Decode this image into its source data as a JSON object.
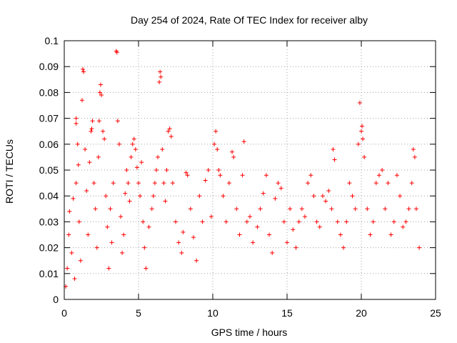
{
  "chart_data": {
    "type": "scatter",
    "title": "Day 254 of 2024, Rate Of TEC Index for receiver alby",
    "xlabel": "GPS time / hours",
    "ylabel": "ROTI / TECUs",
    "xlim": [
      0,
      25
    ],
    "ylim": [
      0,
      0.1
    ],
    "x_ticks": [
      0,
      5,
      10,
      15,
      20,
      25
    ],
    "x_tick_labels": [
      "0",
      "5",
      "10",
      "15",
      "20",
      "25"
    ],
    "y_ticks": [
      0,
      0.01,
      0.02,
      0.03,
      0.04,
      0.05,
      0.06,
      0.07,
      0.08,
      0.09,
      0.1
    ],
    "y_tick_labels": [
      "0",
      "0.01",
      "0.02",
      "0.03",
      "0.04",
      "0.05",
      "0.06",
      "0.07",
      "0.08",
      "0.09",
      "0.1"
    ],
    "grid": true,
    "marker": "plus",
    "series": [
      {
        "name": "ROTI",
        "color": "#ff0000",
        "points": [
          [
            0.1,
            0.005
          ],
          [
            0.2,
            0.012
          ],
          [
            0.3,
            0.025
          ],
          [
            0.35,
            0.034
          ],
          [
            0.5,
            0.018
          ],
          [
            0.6,
            0.039
          ],
          [
            0.7,
            0.008
          ],
          [
            0.8,
            0.045
          ],
          [
            0.8,
            0.07
          ],
          [
            0.8,
            0.068
          ],
          [
            0.9,
            0.06
          ],
          [
            0.95,
            0.052
          ],
          [
            1.0,
            0.03
          ],
          [
            1.1,
            0.015
          ],
          [
            1.2,
            0.077
          ],
          [
            1.25,
            0.089
          ],
          [
            1.3,
            0.088
          ],
          [
            1.4,
            0.058
          ],
          [
            1.5,
            0.042
          ],
          [
            1.6,
            0.025
          ],
          [
            1.7,
            0.053
          ],
          [
            1.8,
            0.065
          ],
          [
            1.85,
            0.066
          ],
          [
            1.9,
            0.069
          ],
          [
            2.0,
            0.045
          ],
          [
            2.1,
            0.035
          ],
          [
            2.2,
            0.02
          ],
          [
            2.3,
            0.055
          ],
          [
            2.35,
            0.069
          ],
          [
            2.4,
            0.08
          ],
          [
            2.45,
            0.083
          ],
          [
            2.5,
            0.079
          ],
          [
            2.6,
            0.065
          ],
          [
            2.7,
            0.062
          ],
          [
            2.8,
            0.04
          ],
          [
            2.9,
            0.028
          ],
          [
            3.0,
            0.012
          ],
          [
            3.1,
            0.035
          ],
          [
            3.2,
            0.022
          ],
          [
            3.3,
            0.045
          ],
          [
            3.5,
            0.096
          ],
          [
            3.55,
            0.0955
          ],
          [
            3.6,
            0.069
          ],
          [
            3.7,
            0.06
          ],
          [
            3.8,
            0.032
          ],
          [
            3.9,
            0.018
          ],
          [
            4.0,
            0.025
          ],
          [
            4.1,
            0.041
          ],
          [
            4.2,
            0.05
          ],
          [
            4.3,
            0.045
          ],
          [
            4.4,
            0.038
          ],
          [
            4.5,
            0.055
          ],
          [
            4.6,
            0.06
          ],
          [
            4.7,
            0.062
          ],
          [
            4.8,
            0.058
          ],
          [
            4.9,
            0.051
          ],
          [
            5.0,
            0.045
          ],
          [
            5.1,
            0.04
          ],
          [
            5.2,
            0.053
          ],
          [
            5.3,
            0.03
          ],
          [
            5.4,
            0.02
          ],
          [
            5.5,
            0.012
          ],
          [
            5.7,
            0.028
          ],
          [
            5.9,
            0.035
          ],
          [
            6.0,
            0.04
          ],
          [
            6.1,
            0.045
          ],
          [
            6.2,
            0.05
          ],
          [
            6.3,
            0.055
          ],
          [
            6.4,
            0.084
          ],
          [
            6.45,
            0.088
          ],
          [
            6.5,
            0.086
          ],
          [
            6.6,
            0.058
          ],
          [
            6.7,
            0.045
          ],
          [
            6.8,
            0.038
          ],
          [
            6.9,
            0.05
          ],
          [
            7.0,
            0.065
          ],
          [
            7.1,
            0.066
          ],
          [
            7.2,
            0.063
          ],
          [
            7.3,
            0.045
          ],
          [
            7.5,
            0.03
          ],
          [
            7.7,
            0.022
          ],
          [
            7.9,
            0.018
          ],
          [
            8.0,
            0.026
          ],
          [
            8.2,
            0.049
          ],
          [
            8.3,
            0.048
          ],
          [
            8.5,
            0.035
          ],
          [
            8.7,
            0.024
          ],
          [
            8.9,
            0.015
          ],
          [
            9.1,
            0.04
          ],
          [
            9.3,
            0.03
          ],
          [
            9.5,
            0.046
          ],
          [
            9.7,
            0.05
          ],
          [
            9.9,
            0.032
          ],
          [
            10.1,
            0.06
          ],
          [
            10.2,
            0.065
          ],
          [
            10.3,
            0.058
          ],
          [
            10.4,
            0.05
          ],
          [
            10.5,
            0.048
          ],
          [
            10.7,
            0.04
          ],
          [
            10.9,
            0.03
          ],
          [
            11.1,
            0.045
          ],
          [
            11.3,
            0.057
          ],
          [
            11.4,
            0.055
          ],
          [
            11.6,
            0.035
          ],
          [
            11.8,
            0.025
          ],
          [
            12.0,
            0.048
          ],
          [
            12.1,
            0.061
          ],
          [
            12.3,
            0.03
          ],
          [
            12.5,
            0.032
          ],
          [
            12.7,
            0.022
          ],
          [
            13.0,
            0.028
          ],
          [
            13.2,
            0.035
          ],
          [
            13.4,
            0.041
          ],
          [
            13.6,
            0.048
          ],
          [
            13.8,
            0.025
          ],
          [
            14.0,
            0.018
          ],
          [
            14.2,
            0.039
          ],
          [
            14.4,
            0.045
          ],
          [
            14.6,
            0.043
          ],
          [
            14.8,
            0.03
          ],
          [
            15.0,
            0.022
          ],
          [
            15.2,
            0.035
          ],
          [
            15.4,
            0.027
          ],
          [
            15.6,
            0.02
          ],
          [
            15.8,
            0.03
          ],
          [
            16.0,
            0.035
          ],
          [
            16.2,
            0.032
          ],
          [
            16.4,
            0.045
          ],
          [
            16.6,
            0.048
          ],
          [
            16.8,
            0.04
          ],
          [
            17.0,
            0.03
          ],
          [
            17.2,
            0.028
          ],
          [
            17.4,
            0.04
          ],
          [
            17.6,
            0.038
          ],
          [
            17.8,
            0.042
          ],
          [
            18.0,
            0.035
          ],
          [
            18.1,
            0.058
          ],
          [
            18.2,
            0.054
          ],
          [
            18.4,
            0.03
          ],
          [
            18.6,
            0.025
          ],
          [
            18.8,
            0.02
          ],
          [
            19.0,
            0.03
          ],
          [
            19.2,
            0.045
          ],
          [
            19.4,
            0.04
          ],
          [
            19.6,
            0.035
          ],
          [
            19.8,
            0.06
          ],
          [
            19.9,
            0.076
          ],
          [
            20.0,
            0.065
          ],
          [
            20.05,
            0.067
          ],
          [
            20.1,
            0.062
          ],
          [
            20.2,
            0.055
          ],
          [
            20.4,
            0.035
          ],
          [
            20.6,
            0.025
          ],
          [
            20.8,
            0.03
          ],
          [
            21.0,
            0.045
          ],
          [
            21.2,
            0.048
          ],
          [
            21.4,
            0.05
          ],
          [
            21.6,
            0.035
          ],
          [
            21.8,
            0.045
          ],
          [
            22.0,
            0.025
          ],
          [
            22.2,
            0.03
          ],
          [
            22.4,
            0.048
          ],
          [
            22.6,
            0.04
          ],
          [
            22.8,
            0.028
          ],
          [
            23.0,
            0.03
          ],
          [
            23.2,
            0.035
          ],
          [
            23.4,
            0.045
          ],
          [
            23.5,
            0.058
          ],
          [
            23.6,
            0.055
          ],
          [
            23.7,
            0.035
          ],
          [
            23.9,
            0.02
          ]
        ]
      }
    ]
  }
}
